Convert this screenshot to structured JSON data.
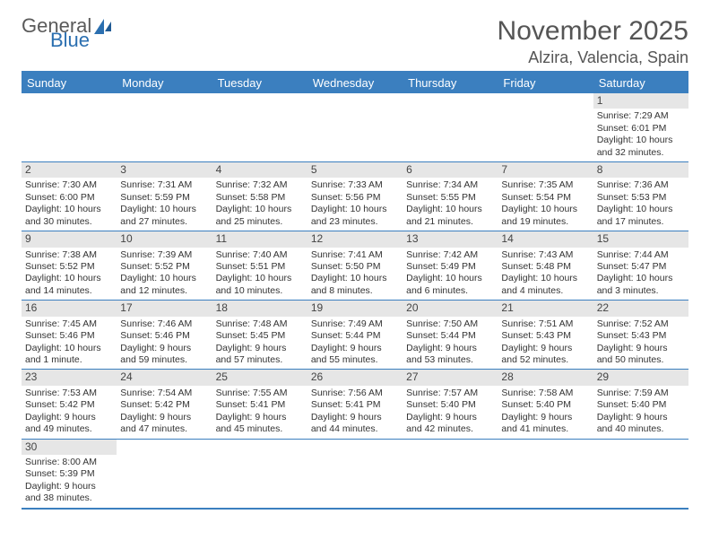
{
  "logo": {
    "text1": "General",
    "text2": "Blue"
  },
  "title": "November 2025",
  "location": "Alzira, Valencia, Spain",
  "colors": {
    "headerBar": "#3b7fbf",
    "numStrip": "#e6e6e6",
    "rule": "#3b7fbf"
  },
  "dayNames": [
    "Sunday",
    "Monday",
    "Tuesday",
    "Wednesday",
    "Thursday",
    "Friday",
    "Saturday"
  ],
  "weeks": [
    [
      null,
      null,
      null,
      null,
      null,
      null,
      {
        "n": "1",
        "sr": "Sunrise: 7:29 AM",
        "ss": "Sunset: 6:01 PM",
        "dl": "Daylight: 10 hours and 32 minutes."
      }
    ],
    [
      {
        "n": "2",
        "sr": "Sunrise: 7:30 AM",
        "ss": "Sunset: 6:00 PM",
        "dl": "Daylight: 10 hours and 30 minutes."
      },
      {
        "n": "3",
        "sr": "Sunrise: 7:31 AM",
        "ss": "Sunset: 5:59 PM",
        "dl": "Daylight: 10 hours and 27 minutes."
      },
      {
        "n": "4",
        "sr": "Sunrise: 7:32 AM",
        "ss": "Sunset: 5:58 PM",
        "dl": "Daylight: 10 hours and 25 minutes."
      },
      {
        "n": "5",
        "sr": "Sunrise: 7:33 AM",
        "ss": "Sunset: 5:56 PM",
        "dl": "Daylight: 10 hours and 23 minutes."
      },
      {
        "n": "6",
        "sr": "Sunrise: 7:34 AM",
        "ss": "Sunset: 5:55 PM",
        "dl": "Daylight: 10 hours and 21 minutes."
      },
      {
        "n": "7",
        "sr": "Sunrise: 7:35 AM",
        "ss": "Sunset: 5:54 PM",
        "dl": "Daylight: 10 hours and 19 minutes."
      },
      {
        "n": "8",
        "sr": "Sunrise: 7:36 AM",
        "ss": "Sunset: 5:53 PM",
        "dl": "Daylight: 10 hours and 17 minutes."
      }
    ],
    [
      {
        "n": "9",
        "sr": "Sunrise: 7:38 AM",
        "ss": "Sunset: 5:52 PM",
        "dl": "Daylight: 10 hours and 14 minutes."
      },
      {
        "n": "10",
        "sr": "Sunrise: 7:39 AM",
        "ss": "Sunset: 5:52 PM",
        "dl": "Daylight: 10 hours and 12 minutes."
      },
      {
        "n": "11",
        "sr": "Sunrise: 7:40 AM",
        "ss": "Sunset: 5:51 PM",
        "dl": "Daylight: 10 hours and 10 minutes."
      },
      {
        "n": "12",
        "sr": "Sunrise: 7:41 AM",
        "ss": "Sunset: 5:50 PM",
        "dl": "Daylight: 10 hours and 8 minutes."
      },
      {
        "n": "13",
        "sr": "Sunrise: 7:42 AM",
        "ss": "Sunset: 5:49 PM",
        "dl": "Daylight: 10 hours and 6 minutes."
      },
      {
        "n": "14",
        "sr": "Sunrise: 7:43 AM",
        "ss": "Sunset: 5:48 PM",
        "dl": "Daylight: 10 hours and 4 minutes."
      },
      {
        "n": "15",
        "sr": "Sunrise: 7:44 AM",
        "ss": "Sunset: 5:47 PM",
        "dl": "Daylight: 10 hours and 3 minutes."
      }
    ],
    [
      {
        "n": "16",
        "sr": "Sunrise: 7:45 AM",
        "ss": "Sunset: 5:46 PM",
        "dl": "Daylight: 10 hours and 1 minute."
      },
      {
        "n": "17",
        "sr": "Sunrise: 7:46 AM",
        "ss": "Sunset: 5:46 PM",
        "dl": "Daylight: 9 hours and 59 minutes."
      },
      {
        "n": "18",
        "sr": "Sunrise: 7:48 AM",
        "ss": "Sunset: 5:45 PM",
        "dl": "Daylight: 9 hours and 57 minutes."
      },
      {
        "n": "19",
        "sr": "Sunrise: 7:49 AM",
        "ss": "Sunset: 5:44 PM",
        "dl": "Daylight: 9 hours and 55 minutes."
      },
      {
        "n": "20",
        "sr": "Sunrise: 7:50 AM",
        "ss": "Sunset: 5:44 PM",
        "dl": "Daylight: 9 hours and 53 minutes."
      },
      {
        "n": "21",
        "sr": "Sunrise: 7:51 AM",
        "ss": "Sunset: 5:43 PM",
        "dl": "Daylight: 9 hours and 52 minutes."
      },
      {
        "n": "22",
        "sr": "Sunrise: 7:52 AM",
        "ss": "Sunset: 5:43 PM",
        "dl": "Daylight: 9 hours and 50 minutes."
      }
    ],
    [
      {
        "n": "23",
        "sr": "Sunrise: 7:53 AM",
        "ss": "Sunset: 5:42 PM",
        "dl": "Daylight: 9 hours and 49 minutes."
      },
      {
        "n": "24",
        "sr": "Sunrise: 7:54 AM",
        "ss": "Sunset: 5:42 PM",
        "dl": "Daylight: 9 hours and 47 minutes."
      },
      {
        "n": "25",
        "sr": "Sunrise: 7:55 AM",
        "ss": "Sunset: 5:41 PM",
        "dl": "Daylight: 9 hours and 45 minutes."
      },
      {
        "n": "26",
        "sr": "Sunrise: 7:56 AM",
        "ss": "Sunset: 5:41 PM",
        "dl": "Daylight: 9 hours and 44 minutes."
      },
      {
        "n": "27",
        "sr": "Sunrise: 7:57 AM",
        "ss": "Sunset: 5:40 PM",
        "dl": "Daylight: 9 hours and 42 minutes."
      },
      {
        "n": "28",
        "sr": "Sunrise: 7:58 AM",
        "ss": "Sunset: 5:40 PM",
        "dl": "Daylight: 9 hours and 41 minutes."
      },
      {
        "n": "29",
        "sr": "Sunrise: 7:59 AM",
        "ss": "Sunset: 5:40 PM",
        "dl": "Daylight: 9 hours and 40 minutes."
      }
    ],
    [
      {
        "n": "30",
        "sr": "Sunrise: 8:00 AM",
        "ss": "Sunset: 5:39 PM",
        "dl": "Daylight: 9 hours and 38 minutes."
      },
      null,
      null,
      null,
      null,
      null,
      null
    ]
  ]
}
